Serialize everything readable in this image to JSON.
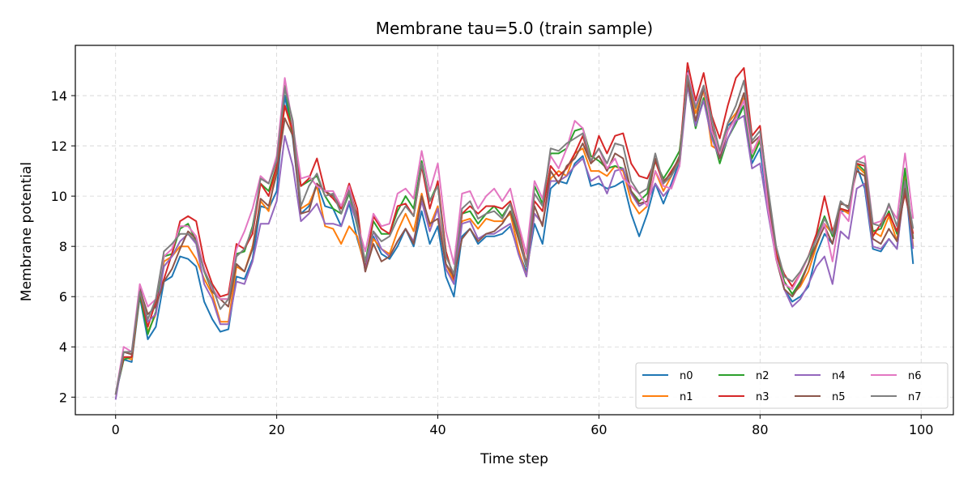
{
  "chart_data": {
    "type": "line",
    "title": "Membrane tau=5.0 (train sample)",
    "xlabel": "Time step",
    "ylabel": "Membrane potential",
    "xlim": [
      -5,
      104
    ],
    "ylim": [
      1.3,
      16.0
    ],
    "xticks": [
      0,
      20,
      40,
      60,
      80,
      100
    ],
    "yticks": [
      2,
      4,
      6,
      8,
      10,
      12,
      14
    ],
    "grid": true,
    "legend": {
      "position": "bottom-right",
      "columns": 4
    },
    "x": [
      0,
      1,
      2,
      3,
      4,
      5,
      6,
      7,
      8,
      9,
      10,
      11,
      12,
      13,
      14,
      15,
      16,
      17,
      18,
      19,
      20,
      21,
      22,
      23,
      24,
      25,
      26,
      27,
      28,
      29,
      30,
      31,
      32,
      33,
      34,
      35,
      36,
      37,
      38,
      39,
      40,
      41,
      42,
      43,
      44,
      45,
      46,
      47,
      48,
      49,
      50,
      51,
      52,
      53,
      54,
      55,
      56,
      57,
      58,
      59,
      60,
      61,
      62,
      63,
      64,
      65,
      66,
      67,
      68,
      69,
      70,
      71,
      72,
      73,
      74,
      75,
      76,
      77,
      78,
      79,
      80,
      81,
      82,
      83,
      84,
      85,
      86,
      87,
      88,
      89,
      90,
      91,
      92,
      93,
      94,
      95,
      96,
      97,
      98,
      99
    ],
    "series": [
      {
        "name": "n0",
        "color": "#1f77b4",
        "values": [
          2.1,
          3.5,
          3.4,
          6.0,
          4.3,
          4.8,
          6.6,
          6.8,
          7.6,
          7.5,
          7.2,
          5.8,
          5.1,
          4.6,
          4.7,
          6.8,
          6.7,
          7.5,
          9.6,
          9.5,
          10.2,
          14.0,
          12.3,
          9.3,
          9.6,
          10.5,
          9.6,
          9.5,
          8.8,
          9.7,
          8.3,
          7.2,
          8.4,
          7.7,
          7.5,
          8.0,
          8.7,
          8.0,
          9.4,
          8.1,
          8.8,
          6.8,
          6.0,
          8.4,
          8.7,
          8.1,
          8.4,
          8.4,
          8.5,
          8.8,
          7.8,
          7.0,
          8.9,
          8.1,
          10.3,
          10.6,
          10.5,
          11.3,
          11.6,
          10.4,
          10.5,
          10.3,
          10.4,
          10.6,
          9.3,
          8.4,
          9.3,
          10.5,
          9.7,
          10.5,
          11.4,
          15.0,
          12.8,
          13.9,
          12.6,
          11.5,
          12.8,
          13.1,
          13.6,
          11.3,
          11.9,
          9.5,
          7.7,
          6.3,
          5.8,
          6.0,
          6.4,
          7.7,
          8.5,
          8.1,
          9.4,
          9.4,
          11.2,
          10.3,
          7.9,
          7.8,
          8.3,
          7.9,
          10.7,
          7.3
        ]
      },
      {
        "name": "n1",
        "color": "#ff7f0e",
        "values": [
          2.1,
          3.6,
          3.5,
          6.1,
          4.6,
          5.3,
          7.4,
          7.6,
          8.0,
          8.0,
          7.5,
          6.7,
          6.1,
          5.0,
          5.0,
          7.2,
          7.0,
          8.0,
          9.8,
          9.4,
          11.2,
          13.6,
          12.5,
          9.5,
          9.7,
          10.4,
          8.8,
          8.7,
          8.1,
          8.8,
          8.4,
          7.1,
          8.3,
          7.9,
          7.7,
          8.6,
          9.3,
          8.6,
          10.1,
          8.8,
          9.6,
          7.3,
          6.6,
          9.0,
          9.1,
          8.7,
          9.1,
          9.0,
          9.0,
          9.3,
          7.9,
          6.8,
          9.3,
          8.9,
          10.7,
          11.0,
          10.8,
          11.7,
          11.9,
          11.0,
          11.0,
          10.8,
          11.2,
          11.0,
          9.8,
          9.3,
          9.6,
          11.0,
          10.2,
          10.8,
          11.6,
          14.6,
          13.3,
          14.2,
          12.0,
          11.8,
          12.9,
          13.3,
          13.9,
          11.7,
          12.3,
          10.0,
          7.9,
          6.6,
          6.1,
          6.4,
          7.0,
          8.0,
          8.9,
          8.5,
          9.5,
          9.3,
          11.2,
          10.9,
          8.6,
          8.4,
          9.2,
          8.2,
          11.0,
          8.0
        ]
      },
      {
        "name": "n2",
        "color": "#2ca02c",
        "values": [
          2.1,
          3.5,
          3.6,
          6.1,
          4.5,
          5.4,
          7.6,
          7.7,
          8.7,
          8.9,
          8.2,
          7.0,
          6.2,
          5.9,
          5.9,
          7.7,
          7.8,
          8.8,
          10.5,
          10.2,
          11.2,
          14.4,
          12.4,
          10.4,
          10.6,
          10.8,
          10.0,
          9.5,
          9.3,
          10.1,
          8.8,
          7.4,
          9.0,
          8.5,
          8.5,
          9.4,
          10.0,
          9.5,
          11.4,
          9.8,
          10.5,
          7.8,
          6.7,
          9.3,
          9.4,
          8.9,
          9.3,
          9.6,
          9.2,
          9.7,
          8.4,
          7.2,
          10.4,
          9.7,
          11.7,
          11.7,
          11.9,
          12.6,
          12.7,
          11.6,
          11.4,
          11.1,
          11.2,
          11.1,
          10.2,
          9.8,
          10.1,
          11.4,
          10.7,
          11.2,
          11.8,
          14.4,
          12.7,
          13.9,
          12.5,
          11.3,
          12.3,
          12.9,
          13.6,
          11.5,
          12.2,
          9.8,
          7.7,
          6.6,
          6.1,
          6.6,
          7.3,
          8.4,
          9.2,
          8.4,
          9.5,
          9.4,
          11.3,
          11.0,
          8.6,
          8.7,
          9.4,
          8.5,
          11.1,
          8.3
        ]
      },
      {
        "name": "n3",
        "color": "#d62728",
        "values": [
          2.1,
          3.6,
          3.6,
          6.2,
          4.8,
          5.8,
          6.7,
          7.7,
          9.0,
          9.2,
          9.0,
          7.4,
          6.5,
          6.0,
          6.1,
          8.1,
          7.9,
          8.5,
          10.5,
          10.0,
          11.2,
          13.6,
          12.6,
          10.4,
          10.7,
          11.5,
          10.2,
          9.9,
          9.5,
          10.5,
          9.5,
          7.0,
          9.2,
          8.7,
          8.5,
          9.6,
          9.7,
          9.2,
          11.2,
          9.5,
          10.6,
          7.8,
          6.7,
          9.3,
          9.6,
          9.3,
          9.6,
          9.6,
          9.5,
          9.8,
          8.7,
          7.3,
          9.8,
          9.4,
          11.2,
          10.8,
          11.1,
          11.7,
          12.4,
          11.3,
          12.4,
          11.7,
          12.4,
          12.5,
          11.3,
          10.8,
          10.7,
          11.4,
          10.5,
          11.0,
          11.5,
          15.3,
          13.8,
          14.9,
          13.2,
          12.3,
          13.6,
          14.7,
          15.1,
          12.4,
          12.8,
          10.1,
          7.7,
          6.9,
          6.4,
          6.9,
          7.6,
          8.5,
          10.0,
          8.6,
          9.5,
          9.4,
          11.3,
          11.2,
          8.4,
          8.9,
          9.3,
          8.6,
          10.1,
          8.5
        ]
      },
      {
        "name": "n4",
        "color": "#9467bd",
        "values": [
          1.9,
          3.8,
          3.7,
          6.4,
          5.0,
          5.3,
          7.2,
          7.6,
          8.2,
          8.5,
          8.1,
          6.5,
          5.9,
          4.9,
          4.9,
          6.6,
          6.5,
          7.4,
          8.9,
          8.9,
          9.8,
          12.4,
          11.2,
          9.0,
          9.3,
          9.7,
          8.9,
          8.9,
          8.8,
          9.8,
          8.9,
          7.0,
          8.6,
          7.9,
          7.6,
          8.2,
          8.7,
          8.2,
          9.8,
          8.6,
          9.5,
          7.1,
          6.5,
          8.9,
          9.0,
          8.3,
          8.5,
          8.5,
          8.7,
          8.9,
          7.7,
          6.8,
          9.3,
          8.9,
          10.6,
          10.6,
          10.8,
          11.2,
          11.5,
          10.6,
          10.8,
          10.1,
          11.0,
          11.1,
          10.1,
          9.6,
          9.8,
          10.5,
          10.0,
          10.4,
          11.2,
          14.4,
          12.8,
          13.8,
          12.3,
          11.5,
          12.3,
          13.0,
          13.2,
          11.1,
          11.3,
          9.3,
          7.5,
          6.3,
          5.6,
          5.9,
          6.5,
          7.2,
          7.6,
          6.5,
          8.6,
          8.3,
          10.3,
          10.5,
          8.0,
          7.9,
          8.3,
          7.9,
          10.5,
          7.9
        ]
      },
      {
        "name": "n5",
        "color": "#8c564b",
        "values": [
          2.1,
          3.8,
          3.7,
          6.3,
          5.3,
          5.6,
          6.6,
          7.1,
          7.9,
          8.6,
          8.3,
          7.1,
          6.2,
          5.9,
          5.6,
          7.3,
          7.0,
          7.9,
          9.9,
          9.6,
          10.9,
          13.1,
          12.4,
          9.3,
          9.4,
          10.5,
          10.2,
          10.0,
          9.6,
          10.3,
          9.2,
          7.0,
          8.1,
          7.4,
          7.6,
          8.2,
          8.7,
          8.1,
          10.0,
          8.9,
          9.1,
          7.3,
          6.8,
          8.3,
          8.7,
          8.2,
          8.5,
          8.6,
          8.9,
          9.4,
          8.3,
          7.2,
          9.6,
          8.8,
          11.0,
          10.5,
          11.2,
          11.5,
          12.1,
          11.3,
          11.6,
          11.0,
          11.7,
          11.5,
          10.2,
          9.7,
          9.8,
          11.5,
          10.6,
          10.9,
          11.6,
          14.6,
          13.0,
          14.3,
          12.8,
          11.5,
          12.6,
          13.2,
          14.1,
          12.1,
          12.4,
          10.0,
          7.5,
          6.3,
          6.0,
          6.5,
          7.3,
          8.1,
          8.8,
          8.1,
          9.7,
          9.6,
          11.0,
          10.8,
          8.3,
          8.1,
          8.7,
          8.2,
          10.3,
          8.3
        ]
      },
      {
        "name": "n6",
        "color": "#e377c2",
        "values": [
          2.1,
          4.0,
          3.8,
          6.5,
          5.6,
          5.9,
          7.6,
          7.9,
          8.8,
          8.8,
          8.4,
          7.1,
          6.3,
          5.9,
          5.9,
          7.9,
          8.6,
          9.5,
          10.8,
          10.5,
          11.6,
          14.7,
          12.8,
          10.7,
          10.8,
          10.4,
          10.2,
          10.2,
          9.6,
          10.4,
          8.9,
          7.8,
          9.3,
          8.8,
          8.9,
          10.1,
          10.3,
          9.9,
          11.8,
          10.2,
          11.3,
          8.6,
          7.3,
          10.1,
          10.2,
          9.5,
          10.0,
          10.3,
          9.8,
          10.3,
          8.9,
          7.7,
          10.6,
          9.9,
          11.6,
          11.1,
          11.9,
          13.0,
          12.7,
          11.4,
          11.9,
          11.1,
          11.5,
          10.7,
          10.4,
          10.1,
          9.6,
          11.0,
          10.4,
          10.3,
          11.2,
          14.9,
          13.6,
          14.4,
          12.6,
          11.7,
          12.6,
          13.1,
          13.8,
          11.7,
          12.4,
          9.5,
          7.5,
          6.5,
          6.3,
          6.9,
          7.6,
          8.3,
          8.9,
          7.4,
          9.4,
          9.0,
          11.4,
          11.6,
          8.9,
          9.0,
          9.6,
          9.1,
          11.7,
          9.1
        ]
      },
      {
        "name": "n7",
        "color": "#7f7f7f",
        "values": [
          2.1,
          3.8,
          3.8,
          6.2,
          5.1,
          5.9,
          7.8,
          8.1,
          8.5,
          8.5,
          8.2,
          7.0,
          6.4,
          5.5,
          5.9,
          7.6,
          7.9,
          8.7,
          10.7,
          10.5,
          11.4,
          14.3,
          13.0,
          9.6,
          10.4,
          10.9,
          10.0,
          10.1,
          9.3,
          10.2,
          8.9,
          7.4,
          8.6,
          8.2,
          8.4,
          9.1,
          9.6,
          9.2,
          11.3,
          9.8,
          10.4,
          7.6,
          6.9,
          9.5,
          9.8,
          9.1,
          9.3,
          9.4,
          9.1,
          9.7,
          8.6,
          7.2,
          10.1,
          9.6,
          11.9,
          11.8,
          12.1,
          12.3,
          12.5,
          11.4,
          11.9,
          11.3,
          12.1,
          12.0,
          10.6,
          10.1,
          10.3,
          11.7,
          10.5,
          10.8,
          11.4,
          14.8,
          13.5,
          14.4,
          13.1,
          11.8,
          12.9,
          13.6,
          14.6,
          12.2,
          12.6,
          10.3,
          8.0,
          6.8,
          6.6,
          7.0,
          7.6,
          8.3,
          9.1,
          8.5,
          9.8,
          9.5,
          11.4,
          11.3,
          8.9,
          8.8,
          9.7,
          8.8,
          10.6,
          8.7
        ]
      }
    ]
  }
}
